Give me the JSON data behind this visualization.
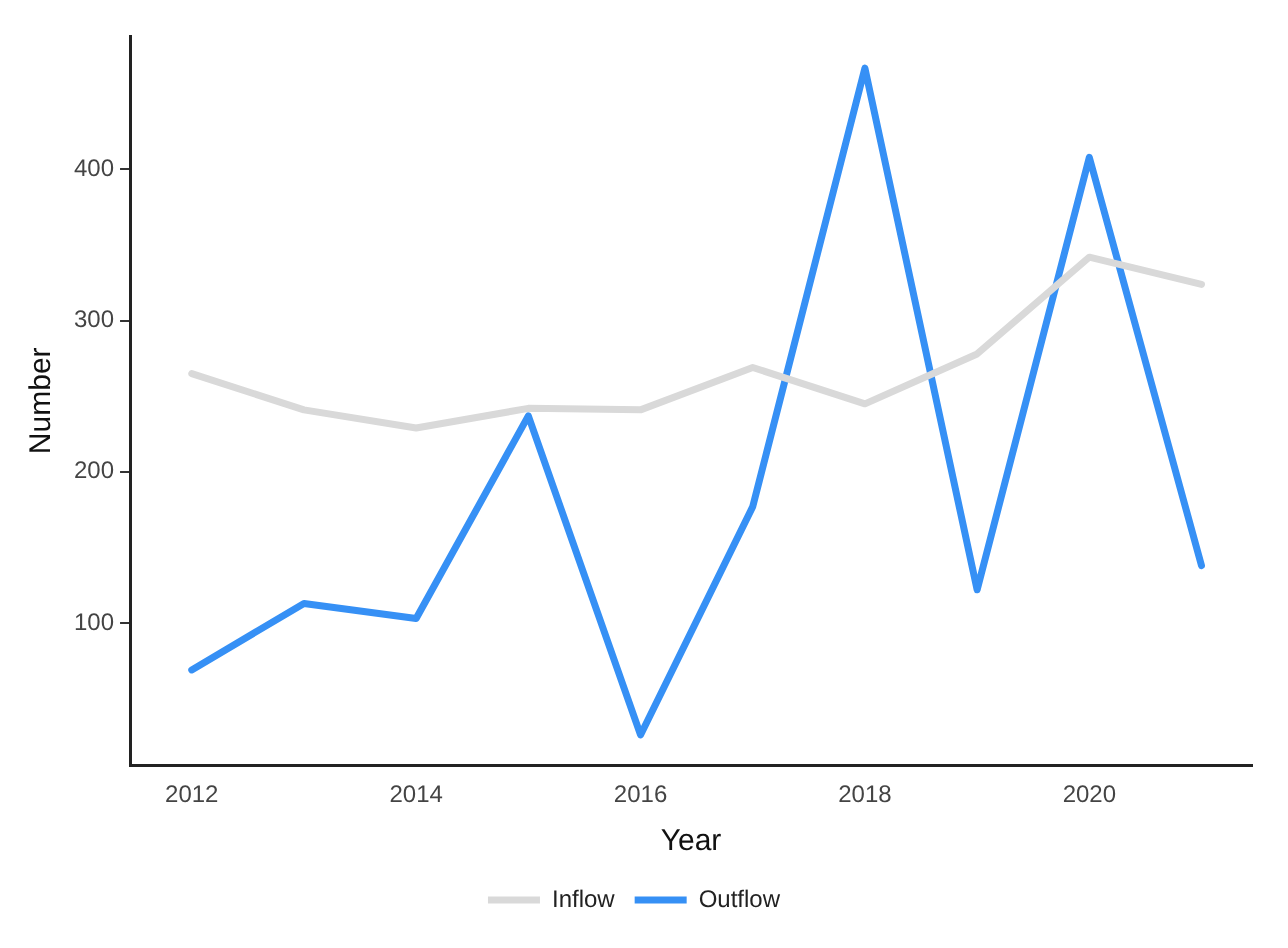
{
  "chart_data": {
    "type": "line",
    "xlabel": "Year",
    "ylabel": "Number",
    "x": [
      2012,
      2013,
      2014,
      2015,
      2016,
      2017,
      2018,
      2019,
      2020,
      2021
    ],
    "series": [
      {
        "name": "Inflow",
        "color": "#d9d9d9",
        "values": [
          265,
          241,
          229,
          242,
          241,
          269,
          245,
          278,
          342,
          324
        ]
      },
      {
        "name": "Outflow",
        "color": "#3690f5",
        "values": [
          69,
          113,
          103,
          237,
          26,
          177,
          467,
          122,
          408,
          138
        ]
      }
    ],
    "xlim": [
      2011.45,
      2021.45
    ],
    "xticks": [
      2012,
      2014,
      2016,
      2018,
      2020
    ],
    "ylim": [
      6,
      488
    ],
    "yticks": [
      100,
      200,
      300,
      400
    ],
    "grid": false,
    "legend": "bottom",
    "marker": "none",
    "line_style": "solid"
  }
}
